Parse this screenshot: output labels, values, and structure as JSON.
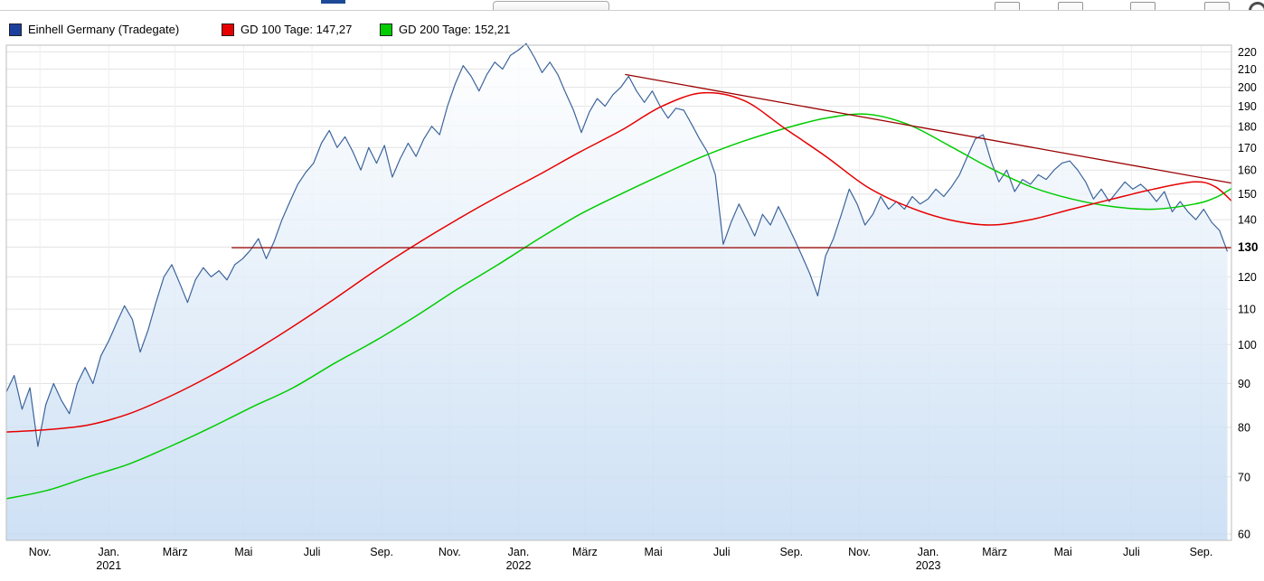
{
  "toolbar": {
    "tab_indicator_color": "#1d4a96",
    "icons": [
      "chart-tool-icon-1",
      "chart-tool-icon-2",
      "chart-tool-icon-3",
      "chart-tool-icon-4",
      "round-badge-icon"
    ]
  },
  "legend": {
    "items": [
      {
        "label": "Einhell Germany (Tradegate)",
        "color": "#1c3f9e"
      },
      {
        "label": "GD 100 Tage: 147,27",
        "color": "#e60000"
      },
      {
        "label": "GD 200 Tage: 152,21",
        "color": "#00cc00"
      }
    ]
  },
  "chart_data": {
    "type": "area",
    "x_axis": {
      "scale": "linear-time",
      "min": 2020.75,
      "max": 2023.74,
      "ticks": [
        {
          "t": 2020.832,
          "label": "Nov."
        },
        {
          "t": 2021.0,
          "label": "Jan.",
          "year": "2021"
        },
        {
          "t": 2021.162,
          "label": "März"
        },
        {
          "t": 2021.329,
          "label": "Mai"
        },
        {
          "t": 2021.496,
          "label": "Juli"
        },
        {
          "t": 2021.666,
          "label": "Sep."
        },
        {
          "t": 2021.832,
          "label": "Nov."
        },
        {
          "t": 2022.0,
          "label": "Jan.",
          "year": "2022"
        },
        {
          "t": 2022.162,
          "label": "März"
        },
        {
          "t": 2022.329,
          "label": "Mai"
        },
        {
          "t": 2022.496,
          "label": "Juli"
        },
        {
          "t": 2022.666,
          "label": "Sep."
        },
        {
          "t": 2022.832,
          "label": "Nov."
        },
        {
          "t": 2023.0,
          "label": "Jan.",
          "year": "2023"
        },
        {
          "t": 2023.162,
          "label": "März"
        },
        {
          "t": 2023.329,
          "label": "Mai"
        },
        {
          "t": 2023.496,
          "label": "Juli"
        },
        {
          "t": 2023.666,
          "label": "Sep."
        }
      ]
    },
    "y_axis": {
      "scale": "log",
      "side": "right",
      "min": 59,
      "max": 224,
      "ticks": [
        220,
        210,
        200,
        190,
        180,
        170,
        160,
        150,
        140,
        130,
        120,
        110,
        100,
        90,
        80,
        70,
        60
      ],
      "highlight": 130
    },
    "grid": {
      "h_color": "#e3e3e3",
      "v_color": "#efefef",
      "border_color": "#bdbdbd"
    },
    "series": [
      {
        "name": "Einhell Germany (Tradegate)",
        "type": "area",
        "color": "#3c649b",
        "fill_gradient": [
          "#ffffff",
          "#c3daf2"
        ],
        "t0": 2020.75,
        "dt": 0.019226,
        "values": [
          88,
          92,
          84,
          89,
          76,
          85,
          90,
          86,
          83,
          90,
          94,
          90,
          97,
          101,
          106,
          111,
          107,
          98,
          104,
          112,
          120,
          124,
          118,
          112,
          119,
          123,
          120,
          122,
          119,
          124,
          126,
          129,
          133,
          126,
          132,
          140,
          147,
          154,
          159,
          163,
          172,
          178,
          170,
          175,
          168,
          160,
          170,
          163,
          171,
          157,
          165,
          172,
          166,
          174,
          180,
          176,
          190,
          202,
          212,
          206,
          198,
          207,
          214,
          210,
          218,
          221,
          225,
          217,
          208,
          214,
          207,
          197,
          188,
          177,
          187,
          194,
          190,
          196,
          200,
          206,
          198,
          192,
          198,
          190,
          184,
          189,
          188,
          181,
          174,
          168,
          158,
          131,
          139,
          146,
          140,
          134,
          142,
          138,
          145,
          139,
          133,
          127,
          121,
          114,
          127,
          133,
          142,
          152,
          146,
          138,
          142,
          149,
          144,
          147,
          144,
          149,
          146,
          148,
          152,
          149,
          153,
          158,
          166,
          174,
          176,
          164,
          155,
          160,
          151,
          156,
          154,
          158,
          156,
          160,
          163,
          164,
          160,
          155,
          148,
          152,
          147,
          151,
          155,
          152,
          154,
          151,
          147,
          151,
          143,
          147,
          143,
          140,
          144,
          139,
          136,
          128.5
        ]
      },
      {
        "name": "GD 100 Tage",
        "type": "line",
        "color": "#e60000",
        "last_value": 147.27,
        "x": [
          2020.75,
          2020.85,
          2020.95,
          2021.05,
          2021.15,
          2021.25,
          2021.35,
          2021.45,
          2021.55,
          2021.65,
          2021.75,
          2021.85,
          2021.95,
          2022.05,
          2022.15,
          2022.25,
          2022.35,
          2022.45,
          2022.55,
          2022.65,
          2022.75,
          2022.85,
          2022.95,
          2023.05,
          2023.15,
          2023.25,
          2023.35,
          2023.45,
          2023.55,
          2023.65,
          2023.7,
          2023.74
        ],
        "values": [
          79,
          79.5,
          80.5,
          83,
          87,
          92,
          98,
          105,
          113,
          122,
          131,
          140,
          149,
          158,
          168,
          178,
          190,
          197,
          193,
          179,
          166,
          153,
          145,
          140,
          138,
          140,
          144,
          148,
          152,
          155,
          153,
          147.27
        ]
      },
      {
        "name": "GD 200 Tage",
        "type": "line",
        "color": "#00cc00",
        "last_value": 152.21,
        "x": [
          2020.75,
          2020.85,
          2020.95,
          2021.05,
          2021.15,
          2021.25,
          2021.35,
          2021.45,
          2021.55,
          2021.65,
          2021.75,
          2021.85,
          2021.95,
          2022.05,
          2022.15,
          2022.25,
          2022.35,
          2022.45,
          2022.55,
          2022.65,
          2022.75,
          2022.85,
          2022.95,
          2023.05,
          2023.15,
          2023.25,
          2023.35,
          2023.45,
          2023.55,
          2023.65,
          2023.7,
          2023.74
        ],
        "values": [
          66,
          67.5,
          70,
          72.5,
          76,
          80,
          84.5,
          89,
          95,
          101,
          108,
          116,
          124,
          133,
          142,
          150,
          158,
          166,
          173,
          179,
          184,
          186,
          181,
          171,
          161,
          153,
          148,
          145,
          144,
          146,
          148.5,
          152.21
        ]
      }
    ],
    "trend_lines": [
      {
        "name": "descending-resistance-line",
        "color": "#990000",
        "points": [
          [
            2022.26,
            207
          ],
          [
            2023.74,
            154.5
          ]
        ]
      },
      {
        "name": "horizontal-support-line",
        "color": "#990000",
        "points": [
          [
            2021.3,
            129.8
          ],
          [
            2023.74,
            129.8
          ]
        ]
      }
    ]
  }
}
